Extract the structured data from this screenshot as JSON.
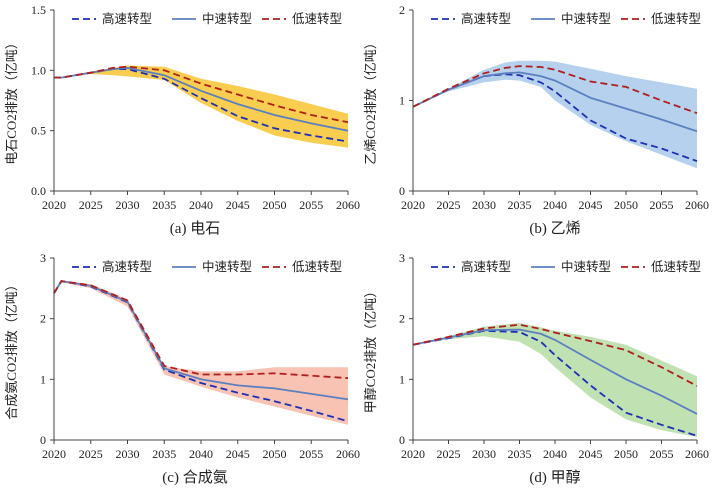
{
  "chart_data": [
    {
      "type": "line",
      "caption": "(a) 电石",
      "ylabel": "电石CO2排放（亿吨）",
      "xlim": [
        2020,
        2060
      ],
      "ylim": [
        0,
        1.5
      ],
      "xticks": [
        "2020",
        "2025",
        "2030",
        "2035",
        "2040",
        "2045",
        "2050",
        "2055",
        "2060"
      ],
      "yticks": [
        "0.0",
        "0.5",
        "1.0",
        "1.5"
      ],
      "band_color": "#f7c431",
      "x": [
        2020,
        2021,
        2025,
        2028,
        2030,
        2035,
        2040,
        2045,
        2050,
        2055,
        2060
      ],
      "band_upper": [
        0.94,
        0.94,
        0.99,
        1.02,
        1.04,
        1.03,
        0.93,
        0.87,
        0.8,
        0.72,
        0.64
      ],
      "band_lower": [
        0.94,
        0.94,
        0.97,
        0.96,
        0.95,
        0.92,
        0.73,
        0.58,
        0.46,
        0.4,
        0.36
      ],
      "series": [
        {
          "name": "高速转型",
          "style": "dash",
          "color": "#1f2fb5",
          "values": [
            0.94,
            0.94,
            0.98,
            1.01,
            1.01,
            0.93,
            0.77,
            0.62,
            0.52,
            0.46,
            0.41
          ]
        },
        {
          "name": "中速转型",
          "style": "solid",
          "color": "#5b7fbf",
          "values": [
            0.94,
            0.94,
            0.98,
            1.01,
            1.02,
            0.96,
            0.83,
            0.72,
            0.63,
            0.56,
            0.5
          ]
        },
        {
          "name": "低速转型",
          "style": "dash",
          "color": "#b01e1e",
          "values": [
            0.94,
            0.94,
            0.98,
            1.02,
            1.03,
            1.0,
            0.89,
            0.8,
            0.71,
            0.63,
            0.57
          ]
        }
      ]
    },
    {
      "type": "line",
      "caption": "(b) 乙烯",
      "ylabel": "乙烯CO2排放（亿吨）",
      "xlim": [
        2020,
        2060
      ],
      "ylim": [
        0,
        2
      ],
      "xticks": [
        "2020",
        "2025",
        "2030",
        "2035",
        "2040",
        "2045",
        "2050",
        "2055",
        "2060"
      ],
      "yticks": [
        "0",
        "1",
        "2"
      ],
      "band_color": "#a9c9ea",
      "x": [
        2020,
        2025,
        2030,
        2033,
        2035,
        2038,
        2040,
        2045,
        2050,
        2055,
        2060
      ],
      "band_upper": [
        0.93,
        1.13,
        1.34,
        1.42,
        1.44,
        1.44,
        1.43,
        1.35,
        1.27,
        1.2,
        1.13
      ],
      "band_lower": [
        0.93,
        1.1,
        1.2,
        1.23,
        1.22,
        1.15,
        1.0,
        0.73,
        0.55,
        0.4,
        0.25
      ],
      "series": [
        {
          "name": "高速转型",
          "style": "dash",
          "color": "#1f2fb5",
          "values": [
            0.93,
            1.12,
            1.27,
            1.29,
            1.28,
            1.2,
            1.1,
            0.78,
            0.58,
            0.47,
            0.33
          ]
        },
        {
          "name": "中速转型",
          "style": "solid",
          "color": "#5b7fbf",
          "values": [
            0.93,
            1.12,
            1.27,
            1.3,
            1.31,
            1.27,
            1.22,
            1.03,
            0.91,
            0.79,
            0.66
          ]
        },
        {
          "name": "低速转型",
          "style": "dash",
          "color": "#b01e1e",
          "values": [
            0.93,
            1.13,
            1.3,
            1.36,
            1.38,
            1.37,
            1.34,
            1.21,
            1.15,
            1.0,
            0.86
          ]
        }
      ]
    },
    {
      "type": "line",
      "caption": "(c) 合成氨",
      "ylabel": "合成氨CO2排放（亿吨）",
      "xlim": [
        2020,
        2060
      ],
      "ylim": [
        0,
        3
      ],
      "xticks": [
        "2020",
        "2025",
        "2030",
        "2035",
        "2040",
        "2045",
        "2050",
        "2055",
        "2060"
      ],
      "yticks": [
        "0",
        "1",
        "2",
        "3"
      ],
      "band_color": "#f7b9a4",
      "x": [
        2020,
        2021,
        2025,
        2030,
        2035,
        2040,
        2045,
        2050,
        2055,
        2060
      ],
      "band_upper": [
        2.42,
        2.63,
        2.57,
        2.32,
        1.22,
        1.13,
        1.13,
        1.2,
        1.2,
        1.2
      ],
      "band_lower": [
        2.42,
        2.6,
        2.5,
        2.2,
        1.08,
        0.88,
        0.7,
        0.55,
        0.4,
        0.25
      ],
      "series": [
        {
          "name": "高速转型",
          "style": "dash",
          "color": "#1f2fb5",
          "values": [
            2.42,
            2.62,
            2.53,
            2.27,
            1.16,
            0.94,
            0.78,
            0.64,
            0.48,
            0.31
          ]
        },
        {
          "name": "中速转型",
          "style": "solid",
          "color": "#5b7fbf",
          "values": [
            2.42,
            2.62,
            2.54,
            2.28,
            1.18,
            1.0,
            0.9,
            0.85,
            0.76,
            0.67
          ]
        },
        {
          "name": "低速转型",
          "style": "dash",
          "color": "#b01e1e",
          "values": [
            2.42,
            2.62,
            2.55,
            2.3,
            1.22,
            1.08,
            1.08,
            1.1,
            1.06,
            1.02
          ]
        }
      ]
    },
    {
      "type": "line",
      "caption": "(d) 甲醇",
      "ylabel": "甲醇CO2排放（亿吨）",
      "xlim": [
        2020,
        2060
      ],
      "ylim": [
        0,
        3
      ],
      "xticks": [
        "2020",
        "2025",
        "2030",
        "2035",
        "2040",
        "2045",
        "2050",
        "2055",
        "2060"
      ],
      "yticks": [
        "0",
        "1",
        "2",
        "3"
      ],
      "band_color": "#b5dca3",
      "x": [
        2020,
        2025,
        2030,
        2035,
        2038,
        2040,
        2045,
        2050,
        2055,
        2060
      ],
      "band_upper": [
        1.57,
        1.71,
        1.87,
        1.93,
        1.86,
        1.8,
        1.7,
        1.57,
        1.31,
        1.05
      ],
      "band_lower": [
        1.57,
        1.66,
        1.71,
        1.62,
        1.42,
        1.2,
        0.7,
        0.34,
        0.16,
        0.05
      ],
      "series": [
        {
          "name": "高速转型",
          "style": "dash",
          "color": "#1f2fb5",
          "values": [
            1.57,
            1.68,
            1.8,
            1.78,
            1.62,
            1.4,
            0.9,
            0.45,
            0.25,
            0.07
          ]
        },
        {
          "name": "中速转型",
          "style": "solid",
          "color": "#5b7fbf",
          "values": [
            1.57,
            1.69,
            1.81,
            1.82,
            1.75,
            1.65,
            1.32,
            1.0,
            0.73,
            0.43
          ]
        },
        {
          "name": "低速转型",
          "style": "dash",
          "color": "#b01e1e",
          "values": [
            1.57,
            1.7,
            1.84,
            1.9,
            1.83,
            1.77,
            1.63,
            1.48,
            1.2,
            0.89
          ]
        }
      ]
    }
  ]
}
